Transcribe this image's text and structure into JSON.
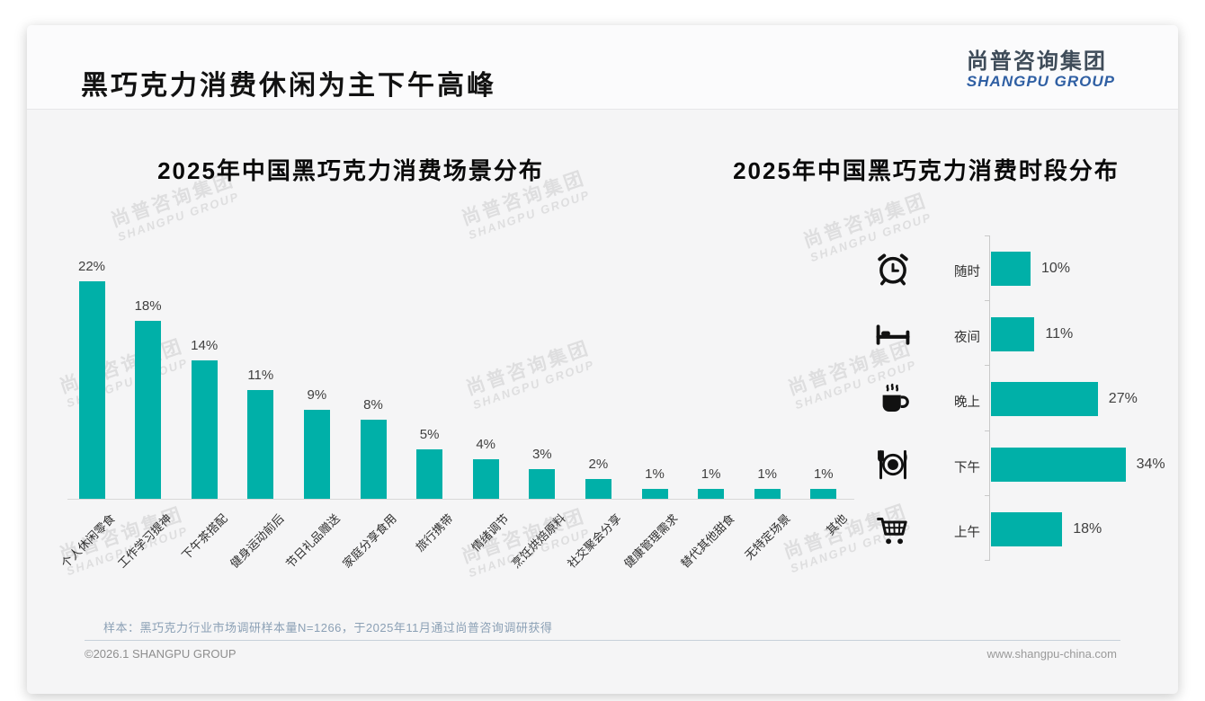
{
  "page": {
    "title": "黑巧克力消费休闲为主下午高峰",
    "logo": {
      "cn": "尚普咨询集团",
      "en": "SHANGPU GROUP"
    },
    "watermark": {
      "line1": "尚普咨询集团",
      "line2": "SHANGPU GROUP"
    },
    "note": "样本：黑巧克力行业市场调研样本量N=1266，于2025年11月通过尚普咨询调研获得",
    "footer": {
      "left": "©2026.1 SHANGPU GROUP",
      "right": "www.shangpu-china.com"
    }
  },
  "colors": {
    "accent": "#00b0a8",
    "logo_blue": "#2f5fa3",
    "logo_dark": "#3f4c59",
    "note_text": "#8ba0b5"
  },
  "chart_data": [
    {
      "type": "bar",
      "orientation": "vertical",
      "title": "2025年中国黑巧克力消费场景分布",
      "categories": [
        "个人休闲零食",
        "工作学习提神",
        "下午茶搭配",
        "健身运动前后",
        "节日礼品赠送",
        "家庭分享食用",
        "旅行携带",
        "情绪调节",
        "烹饪烘焙原料",
        "社交聚会分享",
        "健康管理需求",
        "替代其他甜食",
        "无特定场景",
        "其他"
      ],
      "values": [
        22,
        18,
        14,
        11,
        9,
        8,
        5,
        4,
        3,
        2,
        1,
        1,
        1,
        1
      ],
      "data_labels": [
        "22%",
        "18%",
        "14%",
        "11%",
        "9%",
        "8%",
        "5%",
        "4%",
        "3%",
        "2%",
        "1%",
        "1%",
        "1%",
        "1%"
      ],
      "unit": "%",
      "ylim": [
        0,
        24
      ],
      "grid": false,
      "bar_color": "#00b0a8"
    },
    {
      "type": "bar",
      "orientation": "horizontal",
      "title": "2025年中国黑巧克力消费时段分布",
      "categories": [
        "随时",
        "夜间",
        "晚上",
        "下午",
        "上午"
      ],
      "values": [
        10,
        11,
        27,
        34,
        18
      ],
      "data_labels": [
        "10%",
        "11%",
        "27%",
        "34%",
        "18%"
      ],
      "icons": [
        "alarm-clock-icon",
        "bed-icon",
        "coffee-icon",
        "dining-icon",
        "cart-icon"
      ],
      "unit": "%",
      "xlim": [
        0,
        40
      ],
      "grid": false,
      "bar_color": "#00b0a8"
    }
  ]
}
